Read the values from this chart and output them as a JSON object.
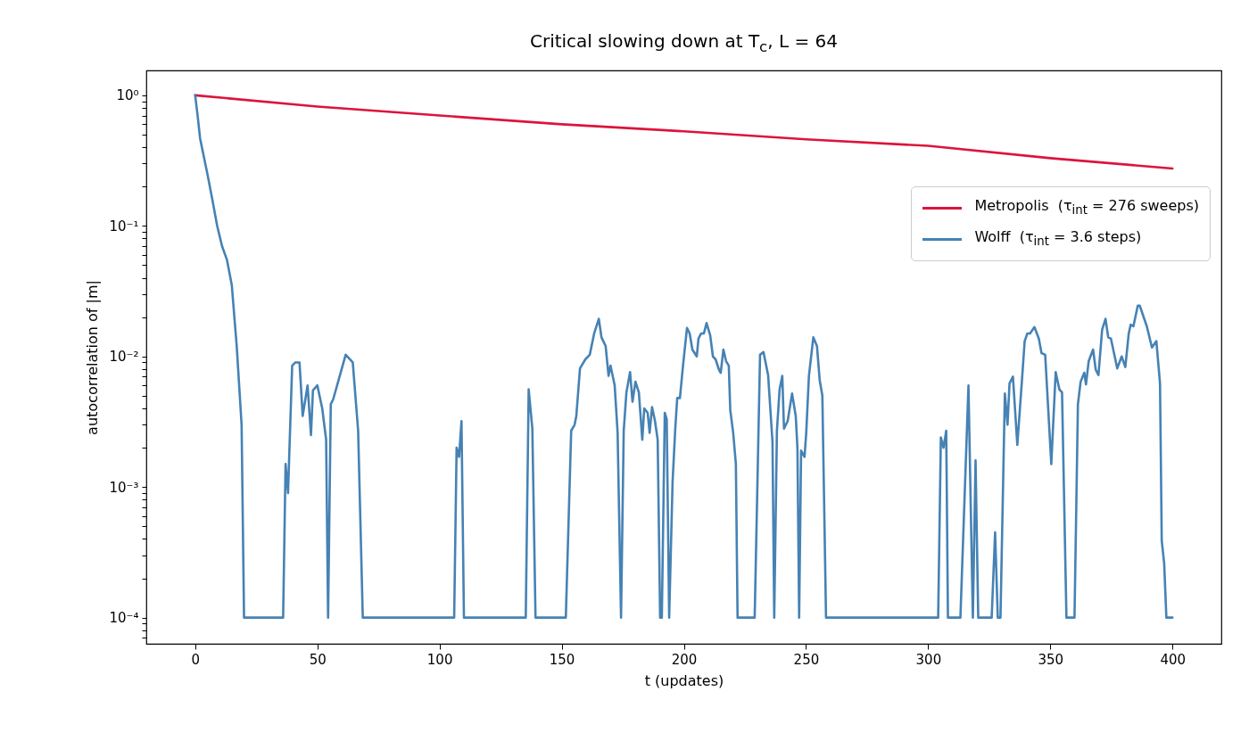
{
  "chart_data": {
    "type": "line",
    "title": "Critical slowing down at T$_{c}$, L = 64",
    "xlabel": "t (updates)",
    "ylabel": "autocorrelation of |m|",
    "log": "y",
    "legend": "top right",
    "xlim": [
      -20,
      420
    ],
    "xticks": [
      0,
      50,
      100,
      150,
      200,
      250,
      300,
      350,
      400
    ],
    "ylim": [
      6.3e-05,
      1.55
    ],
    "yticks": [
      {
        "value": 7e-05,
        "label": null
      },
      {
        "value": 8e-05,
        "label": null
      },
      {
        "value": 9e-05,
        "label": null
      },
      {
        "value": 0.0001,
        "label": "10⁻⁴"
      },
      {
        "value": 0.0002,
        "label": null
      },
      {
        "value": 0.0003,
        "label": null
      },
      {
        "value": 0.0004,
        "label": null
      },
      {
        "value": 0.0005,
        "label": null
      },
      {
        "value": 0.0006,
        "label": null
      },
      {
        "value": 0.0007,
        "label": null
      },
      {
        "value": 0.0008,
        "label": null
      },
      {
        "value": 0.0009,
        "label": null
      },
      {
        "value": 0.001,
        "label": "10⁻³"
      },
      {
        "value": 0.002,
        "label": null
      },
      {
        "value": 0.003,
        "label": null
      },
      {
        "value": 0.004,
        "label": null
      },
      {
        "value": 0.005,
        "label": null
      },
      {
        "value": 0.006,
        "label": null
      },
      {
        "value": 0.007,
        "label": null
      },
      {
        "value": 0.008,
        "label": null
      },
      {
        "value": 0.009,
        "label": null
      },
      {
        "value": 0.01,
        "label": "10⁻²"
      },
      {
        "value": 0.02,
        "label": null
      },
      {
        "value": 0.03,
        "label": null
      },
      {
        "value": 0.04,
        "label": null
      },
      {
        "value": 0.05,
        "label": null
      },
      {
        "value": 0.06,
        "label": null
      },
      {
        "value": 0.07,
        "label": null
      },
      {
        "value": 0.08,
        "label": null
      },
      {
        "value": 0.09,
        "label": null
      },
      {
        "value": 0.1,
        "label": "10⁻¹"
      },
      {
        "value": 0.2,
        "label": null
      },
      {
        "value": 0.3,
        "label": null
      },
      {
        "value": 0.4,
        "label": null
      },
      {
        "value": 0.5,
        "label": null
      },
      {
        "value": 0.6,
        "label": null
      },
      {
        "value": 0.7,
        "label": null
      },
      {
        "value": 0.8,
        "label": null
      },
      {
        "value": 0.9,
        "label": null
      },
      {
        "value": 1,
        "label": "10⁰"
      }
    ],
    "series": [
      {
        "name": "Metropolis  (τ$_{int}$ = 276 sweeps)",
        "color": "#dc143c",
        "x": [
          0,
          50,
          100,
          150,
          200,
          250,
          300,
          350,
          400
        ],
        "values": [
          1.0,
          0.82,
          0.7,
          0.6,
          0.53,
          0.46,
          0.41,
          0.33,
          0.275
        ]
      },
      {
        "name": "Wolff  (τ$_{int}$ = 3.6 steps)",
        "color": "#4682b4",
        "x": [
          0,
          1,
          2,
          3,
          5,
          7,
          9,
          11,
          13,
          15,
          17,
          19,
          20,
          36,
          37,
          38,
          39.7,
          41,
          42.7,
          44,
          46,
          47.4,
          48.2,
          50,
          52,
          53.6,
          54.4,
          55.5,
          56.5,
          61.6,
          64.5,
          66.7,
          68.6,
          106,
          107,
          108,
          109,
          110,
          135.3,
          136.5,
          138,
          139.3,
          151.7,
          153.9,
          155.3,
          156,
          157.5,
          159.7,
          161.5,
          163.3,
          165.2,
          166.3,
          168,
          169.2,
          170,
          171.7,
          172.9,
          174.3,
          175.4,
          176.5,
          178,
          179,
          180.2,
          181.6,
          183,
          183.8,
          185.2,
          186,
          187,
          188.2,
          189.3,
          190.3,
          191,
          192.2,
          193,
          194,
          195.4,
          196.5,
          197.3,
          198.4,
          199.8,
          201.3,
          202.4,
          203.5,
          205.3,
          206,
          207.1,
          208.2,
          209.3,
          210.8,
          211.9,
          213,
          214.4,
          215.1,
          216.2,
          217.3,
          218.4,
          219,
          220.2,
          221.3,
          222,
          229,
          231.2,
          232.6,
          234.5,
          236.3,
          237,
          238.1,
          239.2,
          240.3,
          241,
          242.5,
          244.3,
          245.8,
          246.5,
          247.2,
          248,
          249.4,
          250.1,
          251.2,
          253,
          254.5,
          255.6,
          256.7,
          258.2,
          304.1,
          305.2,
          306.3,
          307.4,
          308.1,
          313.2,
          316.5,
          318.3,
          319.4,
          320.5,
          326,
          327.4,
          328.5,
          329.6,
          331.4,
          332.5,
          333.3,
          334.7,
          336.5,
          338.4,
          339.5,
          340.6,
          341.7,
          343.5,
          345.3,
          346.4,
          347.9,
          350.4,
          352.2,
          353.7,
          354.8,
          356.6,
          359.9,
          361.3,
          362.4,
          363.9,
          364.6,
          365.7,
          367.5,
          368.6,
          369.7,
          371.2,
          372.6,
          373.7,
          374.8,
          377.4,
          379.2,
          380.7,
          382.1,
          382.9,
          384,
          385.8,
          386.6,
          389.5,
          391.6,
          393.4,
          394.9,
          395.6,
          396.6,
          397.5,
          400
        ],
        "values": [
          1.0,
          0.7,
          0.47,
          0.38,
          0.25,
          0.16,
          0.1,
          0.07,
          0.055,
          0.035,
          0.012,
          0.003,
          0.0001,
          0.0001,
          0.0015,
          0.0009,
          0.0085,
          0.009,
          0.009,
          0.0035,
          0.006,
          0.0025,
          0.0055,
          0.006,
          0.004,
          0.0023,
          0.0001,
          0.0043,
          0.0047,
          0.0103,
          0.009,
          0.0027,
          0.0001,
          0.0001,
          0.002,
          0.0017,
          0.0032,
          0.0001,
          0.0001,
          0.0056,
          0.0028,
          0.0001,
          0.0001,
          0.0027,
          0.003,
          0.0035,
          0.0081,
          0.0095,
          0.0103,
          0.015,
          0.0194,
          0.014,
          0.012,
          0.0071,
          0.0085,
          0.006,
          0.0026,
          0.0001,
          0.0027,
          0.0053,
          0.0076,
          0.0045,
          0.0064,
          0.0053,
          0.0023,
          0.004,
          0.0037,
          0.0026,
          0.0041,
          0.0032,
          0.0023,
          0.0001,
          0.0001,
          0.0037,
          0.0033,
          0.0001,
          0.0011,
          0.0028,
          0.0048,
          0.0048,
          0.009,
          0.0165,
          0.015,
          0.0113,
          0.01,
          0.0137,
          0.015,
          0.015,
          0.018,
          0.0145,
          0.01,
          0.0095,
          0.0079,
          0.0075,
          0.0113,
          0.0092,
          0.0085,
          0.0039,
          0.0026,
          0.0015,
          0.0001,
          0.0001,
          0.0103,
          0.0108,
          0.0072,
          0.0022,
          0.0001,
          0.0027,
          0.0056,
          0.0071,
          0.0028,
          0.0032,
          0.0052,
          0.0035,
          0.002,
          0.0001,
          0.0019,
          0.0017,
          0.0026,
          0.0071,
          0.014,
          0.012,
          0.0066,
          0.005,
          0.0001,
          0.0001,
          0.0024,
          0.002,
          0.0027,
          0.0001,
          0.0001,
          0.006,
          0.0001,
          0.0016,
          0.0001,
          0.0001,
          0.00045,
          0.0001,
          0.0001,
          0.0052,
          0.003,
          0.0062,
          0.007,
          0.0021,
          0.0066,
          0.0131,
          0.015,
          0.015,
          0.0168,
          0.0137,
          0.0106,
          0.0103,
          0.0015,
          0.0076,
          0.0056,
          0.0053,
          0.0001,
          0.0001,
          0.0043,
          0.0064,
          0.0075,
          0.0061,
          0.0092,
          0.0113,
          0.0079,
          0.0072,
          0.016,
          0.0194,
          0.014,
          0.0137,
          0.0081,
          0.01,
          0.0083,
          0.015,
          0.0175,
          0.017,
          0.0245,
          0.0245,
          0.017,
          0.0117,
          0.0131,
          0.0062,
          0.00039,
          0.00026,
          0.0001,
          0.0001
        ]
      }
    ]
  }
}
